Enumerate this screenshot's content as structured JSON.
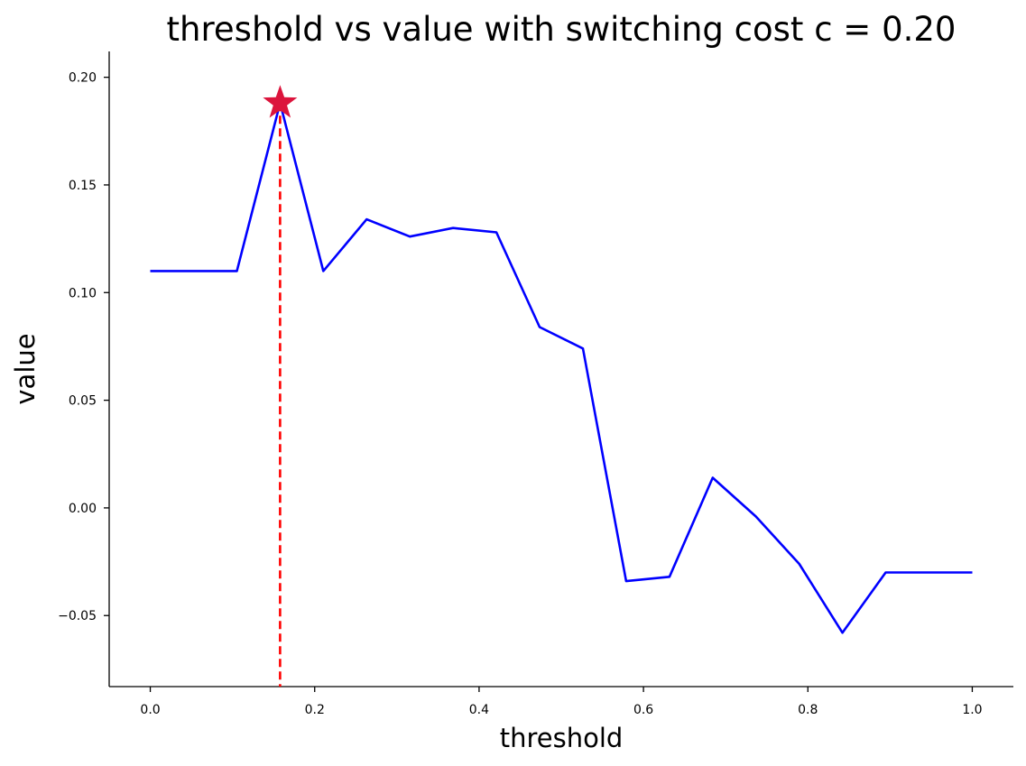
{
  "chart_data": {
    "type": "line",
    "title": "threshold vs value with switching cost c = 0.20",
    "xlabel": "threshold",
    "ylabel": "value",
    "xlim": [
      -0.05,
      1.05
    ],
    "ylim": [
      -0.083,
      0.212
    ],
    "xticks": [
      0.0,
      0.2,
      0.4,
      0.6,
      0.8,
      1.0
    ],
    "xtick_labels": [
      "0.0",
      "0.2",
      "0.4",
      "0.6",
      "0.8",
      "1.0"
    ],
    "yticks": [
      -0.05,
      0.0,
      0.05,
      0.1,
      0.15,
      0.2
    ],
    "ytick_labels": [
      "−0.05",
      "0.00",
      "0.05",
      "0.10",
      "0.15",
      "0.20"
    ],
    "grid": false,
    "top_right_spines": false,
    "series": [
      {
        "color": "#0000ff",
        "x": [
          0.0,
          0.0526,
          0.1053,
          0.1579,
          0.2105,
          0.2632,
          0.3158,
          0.3684,
          0.4211,
          0.4737,
          0.5263,
          0.5789,
          0.6316,
          0.6842,
          0.7368,
          0.7895,
          0.8421,
          0.8947,
          0.9474,
          1.0
        ],
        "y": [
          0.11,
          0.11,
          0.11,
          0.188,
          0.11,
          0.134,
          0.126,
          0.13,
          0.128,
          0.084,
          0.074,
          -0.034,
          -0.032,
          0.014,
          -0.004,
          -0.026,
          -0.058,
          -0.03,
          -0.03,
          -0.03
        ]
      }
    ],
    "best": {
      "x": 0.1579,
      "y": 0.188,
      "marker": "star",
      "color": "#dc143c"
    },
    "vline": {
      "x": 0.1579,
      "color": "#ff0000",
      "style": "dashed"
    }
  }
}
